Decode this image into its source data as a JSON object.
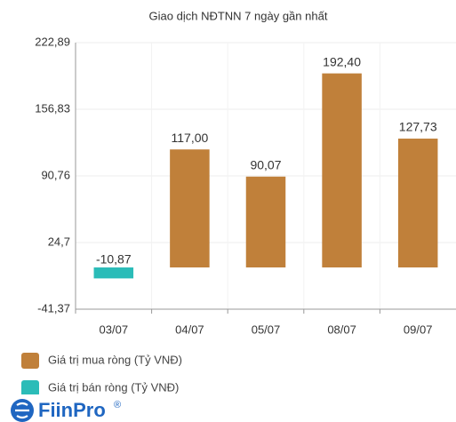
{
  "chart_data": {
    "type": "bar",
    "title": "Giao dịch NĐTNN 7 ngày gần nhất",
    "categories": [
      "03/07",
      "04/07",
      "05/07",
      "08/07",
      "09/07"
    ],
    "series": [
      {
        "name": "Giá trị mua ròng (Tỷ VNĐ)",
        "color": "#c0803a",
        "values": [
          null,
          117.0,
          90.07,
          192.4,
          127.73
        ],
        "value_labels": [
          null,
          "117,00",
          "90,07",
          "192,40",
          "127,73"
        ]
      },
      {
        "name": "Giá trị bán ròng (Tỷ VNĐ)",
        "color": "#2bbcb8",
        "values": [
          -10.87,
          null,
          null,
          null,
          null
        ],
        "value_labels": [
          "-10,87",
          null,
          null,
          null,
          null
        ]
      }
    ],
    "ylim": [
      -41.37,
      222.89
    ],
    "yticks": [
      {
        "value": -41.37,
        "label": "-41,37"
      },
      {
        "value": 24.7,
        "label": "24,7"
      },
      {
        "value": 90.76,
        "label": "90,76"
      },
      {
        "value": 156.83,
        "label": "156,83"
      },
      {
        "value": 222.89,
        "label": "222,89"
      }
    ],
    "grid": true
  },
  "brand": {
    "name": "FiinPro",
    "mark": "®"
  }
}
